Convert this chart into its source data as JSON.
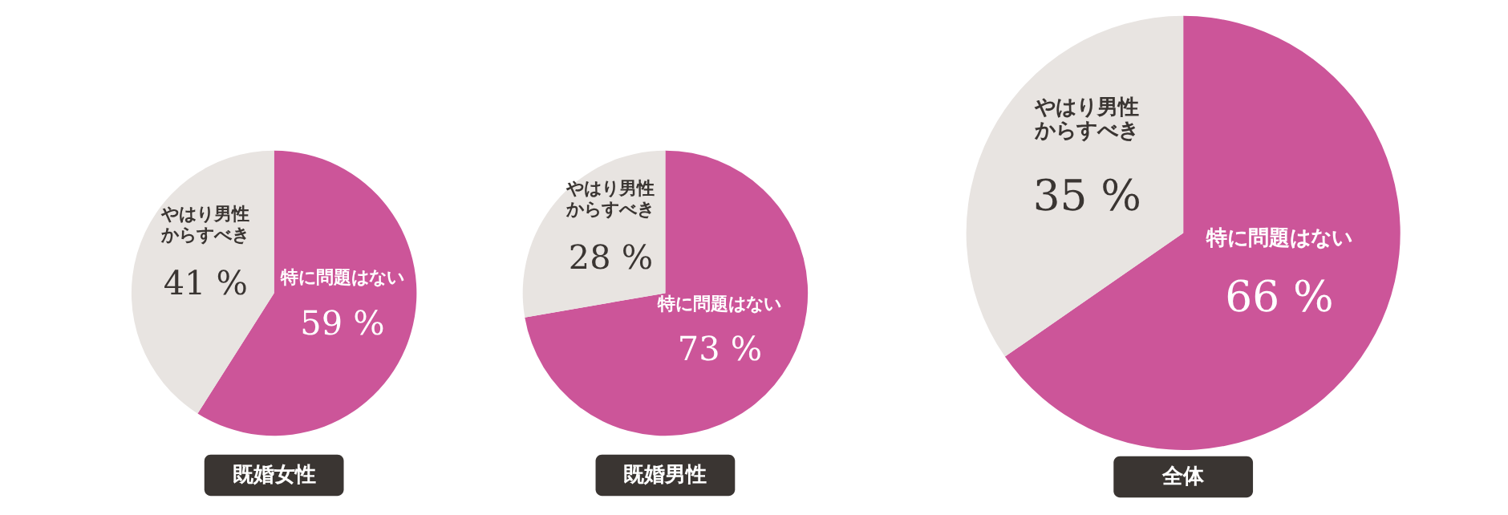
{
  "chart_data": [
    {
      "type": "pie",
      "title": "既婚女性",
      "categories": [
        "特に問題はない",
        "やはり男性からすべき"
      ],
      "values": [
        59,
        41
      ],
      "colors": [
        "#cc5599",
        "#e8e4e1"
      ],
      "value_labels": [
        "59 %",
        "41 %"
      ]
    },
    {
      "type": "pie",
      "title": "既婚男性",
      "categories": [
        "特に問題はない",
        "やはり男性からすべき"
      ],
      "values": [
        73,
        28
      ],
      "colors": [
        "#cc5599",
        "#e8e4e1"
      ],
      "value_labels": [
        "73 %",
        "28 %"
      ]
    },
    {
      "type": "pie",
      "title": "全体",
      "categories": [
        "特に問題はない",
        "やはり男性からすべき"
      ],
      "values": [
        66,
        35
      ],
      "colors": [
        "#cc5599",
        "#e8e4e1"
      ],
      "value_labels": [
        "66 %",
        "35 %"
      ]
    }
  ]
}
